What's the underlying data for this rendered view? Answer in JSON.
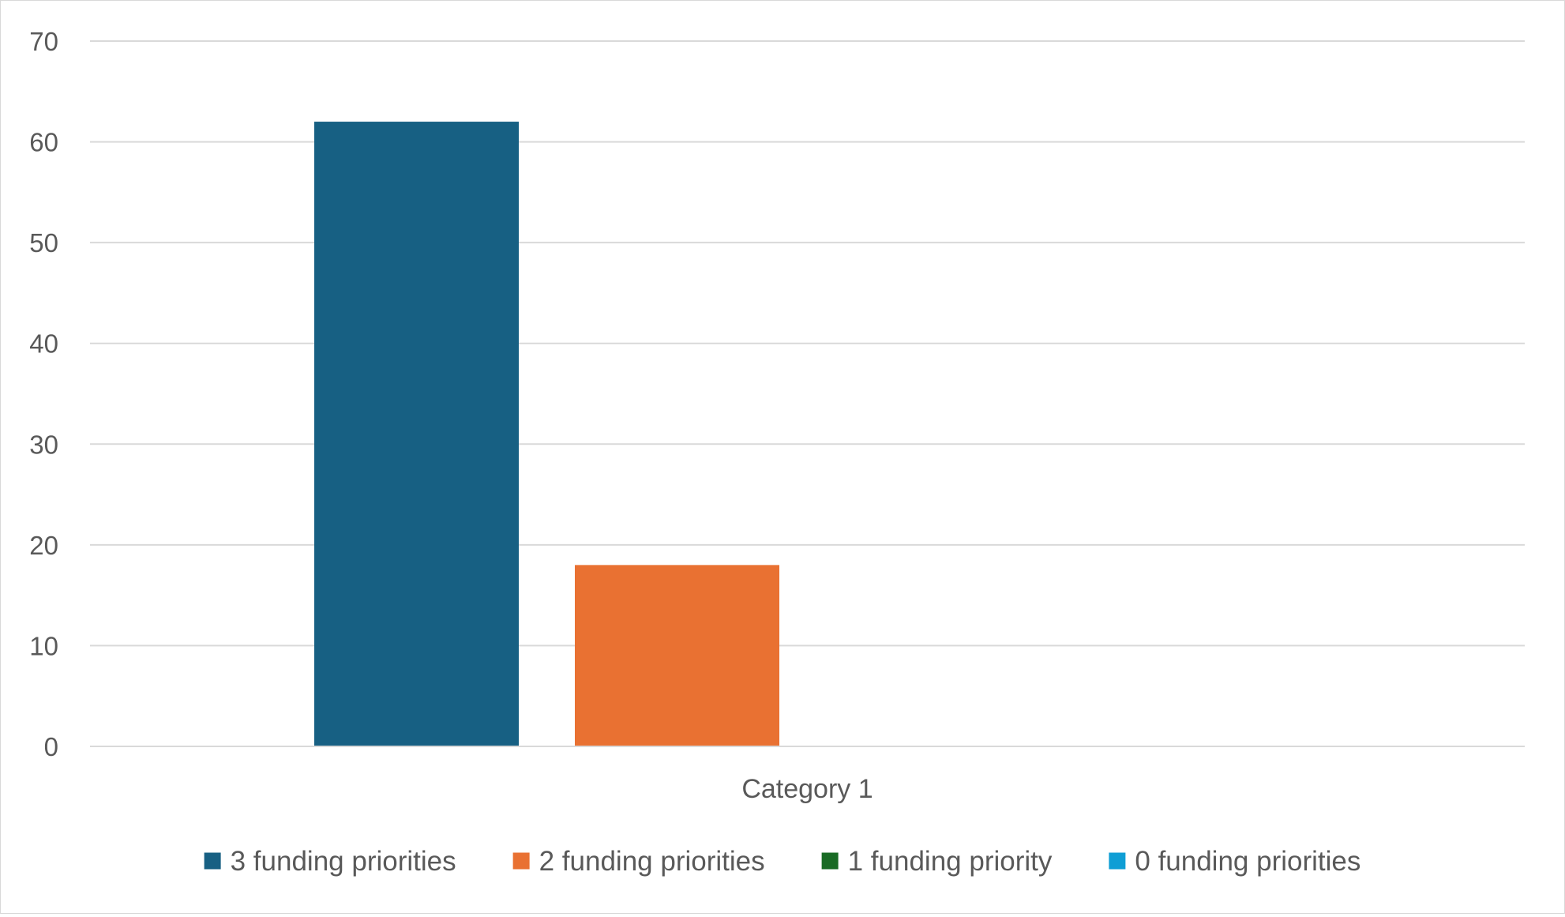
{
  "chart_data": {
    "type": "bar",
    "title": "",
    "xlabel": "",
    "ylabel": "",
    "categories": [
      "Category 1"
    ],
    "series": [
      {
        "name": "3 funding priorities",
        "color": "#176083",
        "values": [
          62
        ]
      },
      {
        "name": "2 funding priorities",
        "color": "#E97132",
        "values": [
          18
        ]
      },
      {
        "name": "1 funding priority",
        "color": "#196B24",
        "values": [
          0
        ]
      },
      {
        "name": "0 funding priorities",
        "color": "#0F9ED5",
        "values": [
          0
        ]
      }
    ],
    "ylim": [
      0,
      70
    ],
    "yticks": [
      "0",
      "10",
      "20",
      "30",
      "40",
      "50",
      "60",
      "70"
    ],
    "grid": true,
    "legend_position": "bottom"
  }
}
